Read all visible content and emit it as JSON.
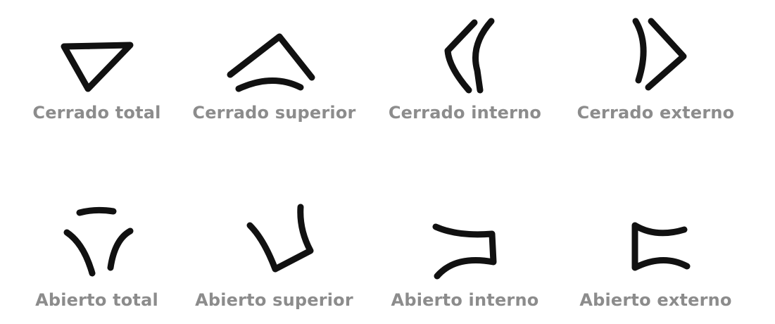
{
  "shapes": [
    {
      "icon": "closed-triangle-icon",
      "label": "Cerrado total"
    },
    {
      "icon": "closed-top-icon",
      "label": "Cerrado superior"
    },
    {
      "icon": "closed-inner-icon",
      "label": "Cerrado interno"
    },
    {
      "icon": "closed-outer-icon",
      "label": "Cerrado externo"
    },
    {
      "icon": "open-triangle-icon",
      "label": "Abierto total"
    },
    {
      "icon": "open-top-icon",
      "label": "Abierto superior"
    },
    {
      "icon": "open-inner-icon",
      "label": "Abierto interno"
    },
    {
      "icon": "open-outer-icon",
      "label": "Abierto externo"
    }
  ],
  "colors": {
    "stroke": "#111111",
    "label": "#8c8c8c",
    "background": "#ffffff"
  }
}
